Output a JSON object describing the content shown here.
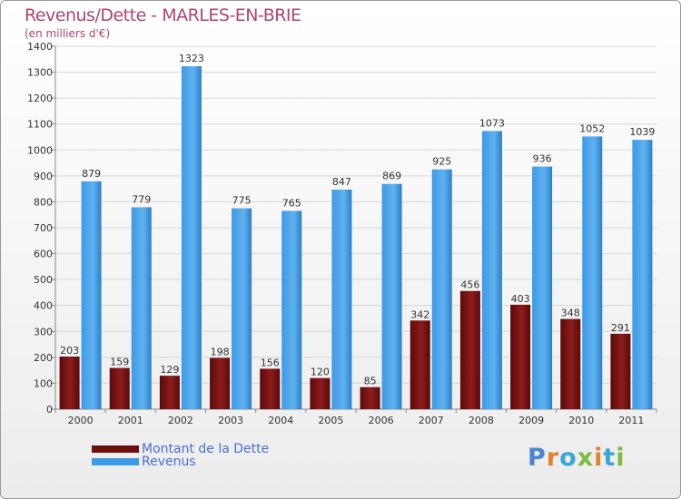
{
  "header": {
    "title": "Revenus/Dette - MARLES-EN-BRIE",
    "subtitle": "(en milliers d'€)"
  },
  "chart_data": {
    "type": "bar",
    "title": "Revenus/Dette - MARLES-EN-BRIE",
    "subtitle": "(en milliers d'€)",
    "categories": [
      "2000",
      "2001",
      "2002",
      "2003",
      "2004",
      "2005",
      "2006",
      "2007",
      "2008",
      "2009",
      "2010",
      "2011"
    ],
    "series": [
      {
        "name": "Montant de la Dette",
        "color": "#7a1212",
        "values": [
          203,
          159,
          129,
          198,
          156,
          120,
          85,
          342,
          456,
          403,
          348,
          291
        ]
      },
      {
        "name": "Revenus",
        "color": "#3d9ae6",
        "values": [
          879,
          779,
          1323,
          775,
          765,
          847,
          869,
          925,
          1073,
          936,
          1052,
          1039
        ]
      }
    ],
    "ylim": [
      0,
      1400
    ],
    "yticks": [
      0,
      100,
      200,
      300,
      400,
      500,
      600,
      700,
      800,
      900,
      1000,
      1100,
      1200,
      1300,
      1400
    ],
    "grid": true,
    "legend_position": "bottom-left"
  },
  "logo": {
    "letters": [
      {
        "ch": "P",
        "color": "#4a86d4"
      },
      {
        "ch": "r",
        "color": "#e0832b"
      },
      {
        "ch": "o",
        "color": "#3aa6d8"
      },
      {
        "ch": "x",
        "color": "#7dbb3c"
      },
      {
        "ch": "i",
        "color": "#e0832b"
      },
      {
        "ch": "t",
        "color": "#3aa6d8"
      },
      {
        "ch": "i",
        "color": "#7dbb3c"
      }
    ]
  }
}
